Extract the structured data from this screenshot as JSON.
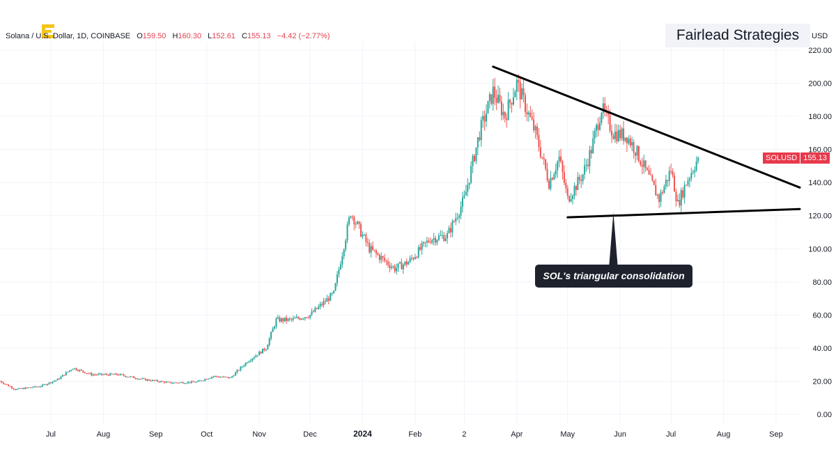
{
  "header": {
    "symbol": "Solana / U.S. Dollar, 1D, COINBASE",
    "open_label": "O",
    "open": "159.50",
    "high_label": "H",
    "high": "160.30",
    "low_label": "L",
    "low": "152.61",
    "close_label": "C",
    "close": "155.13",
    "change": "−4.42 (−2.77%)"
  },
  "brand": "Fairlead Strategies",
  "unit": "USD",
  "price_badge": {
    "symbol": "SOLUSD",
    "price": "155.13"
  },
  "annotation": "SOL's triangular consolidation",
  "colors": {
    "up": "#26a69a",
    "down": "#ef5350",
    "line": "#000000",
    "badge": "#e8394b",
    "callout": "#1e222d"
  },
  "chart_data": {
    "type": "candlestick",
    "title": "",
    "ylabel": "USD",
    "ylim": [
      0,
      220
    ],
    "y_ticks": [
      "0.00",
      "20.00",
      "40.00",
      "60.00",
      "80.00",
      "100.00",
      "120.00",
      "140.00",
      "160.00",
      "180.00",
      "200.00",
      "220.00"
    ],
    "x_ticks": [
      {
        "label": "Jul",
        "date": "2023-07-01"
      },
      {
        "label": "Aug",
        "date": "2023-08-01"
      },
      {
        "label": "Sep",
        "date": "2023-09-01"
      },
      {
        "label": "Oct",
        "date": "2023-10-01"
      },
      {
        "label": "Nov",
        "date": "2023-11-01"
      },
      {
        "label": "Dec",
        "date": "2023-12-01"
      },
      {
        "label": "2024",
        "date": "2024-01-01",
        "bold": true
      },
      {
        "label": "Feb",
        "date": "2024-02-01"
      },
      {
        "label": "2",
        "date": "2024-03-01"
      },
      {
        "label": "Apr",
        "date": "2024-04-01"
      },
      {
        "label": "May",
        "date": "2024-05-01"
      },
      {
        "label": "Jun",
        "date": "2024-06-01"
      },
      {
        "label": "Jul",
        "date": "2024-07-01"
      },
      {
        "label": "Aug",
        "date": "2024-08-01"
      },
      {
        "label": "Sep",
        "date": "2024-09-01"
      }
    ],
    "x_range": [
      "2023-06-01",
      "2024-09-15"
    ],
    "grid": true,
    "close_path": [
      [
        "2023-06-01",
        20
      ],
      [
        "2023-06-10",
        15
      ],
      [
        "2023-06-25",
        17
      ],
      [
        "2023-07-05",
        21
      ],
      [
        "2023-07-14",
        28
      ],
      [
        "2023-07-25",
        24
      ],
      [
        "2023-08-10",
        24
      ],
      [
        "2023-08-25",
        21
      ],
      [
        "2023-09-10",
        19
      ],
      [
        "2023-09-25",
        19.5
      ],
      [
        "2023-10-05",
        23
      ],
      [
        "2023-10-15",
        22
      ],
      [
        "2023-10-25",
        32
      ],
      [
        "2023-11-05",
        40
      ],
      [
        "2023-11-11",
        57
      ],
      [
        "2023-11-20",
        57
      ],
      [
        "2023-12-01",
        60
      ],
      [
        "2023-12-15",
        73
      ],
      [
        "2023-12-25",
        122
      ],
      [
        "2024-01-05",
        100
      ],
      [
        "2024-01-20",
        88
      ],
      [
        "2024-01-28",
        92
      ],
      [
        "2024-02-10",
        106
      ],
      [
        "2024-02-20",
        108
      ],
      [
        "2024-03-01",
        130
      ],
      [
        "2024-03-10",
        170
      ],
      [
        "2024-03-18",
        195
      ],
      [
        "2024-03-25",
        180
      ],
      [
        "2024-04-01",
        200
      ],
      [
        "2024-04-12",
        170
      ],
      [
        "2024-04-20",
        140
      ],
      [
        "2024-04-26",
        155
      ],
      [
        "2024-05-01",
        130
      ],
      [
        "2024-05-10",
        145
      ],
      [
        "2024-05-15",
        160
      ],
      [
        "2024-05-21",
        185
      ],
      [
        "2024-05-28",
        170
      ],
      [
        "2024-06-05",
        168
      ],
      [
        "2024-06-10",
        160
      ],
      [
        "2024-06-17",
        145
      ],
      [
        "2024-06-24",
        130
      ],
      [
        "2024-07-01",
        148
      ],
      [
        "2024-07-05",
        127
      ],
      [
        "2024-07-10",
        140
      ],
      [
        "2024-07-17",
        155
      ]
    ],
    "lines": [
      {
        "name": "resistance",
        "from": [
          "2024-03-18",
          210
        ],
        "to": [
          "2024-09-15",
          137
        ]
      },
      {
        "name": "support",
        "from": [
          "2024-05-01",
          119
        ],
        "to": [
          "2024-09-15",
          124
        ]
      }
    ],
    "annotation": {
      "text": "SOL's triangular consolidation",
      "points_to": [
        "2024-05-28",
        122
      ]
    }
  }
}
